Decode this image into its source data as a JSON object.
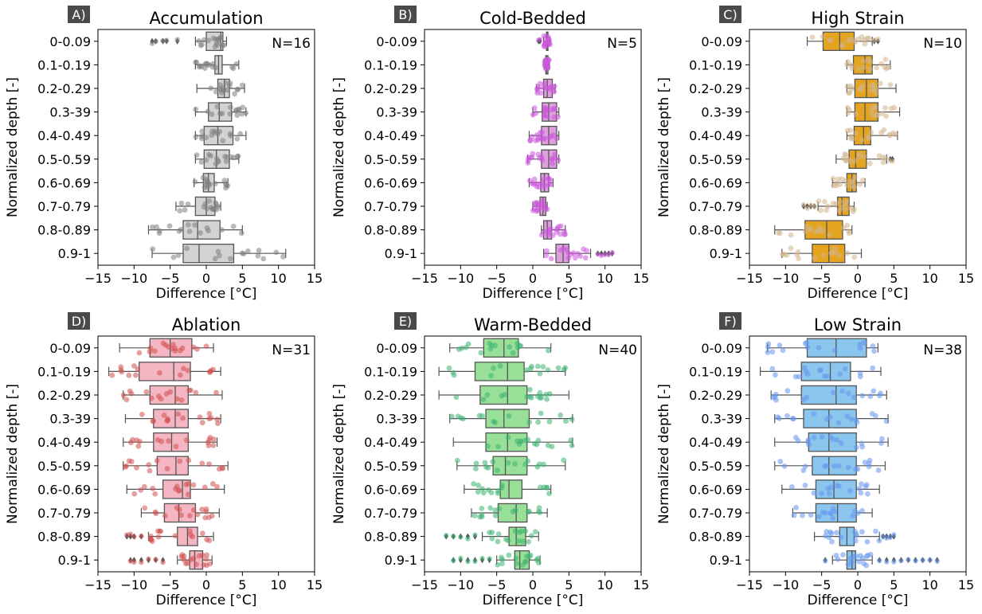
{
  "chart_data": {
    "type": "box",
    "shared": {
      "categories": [
        "0-0.09",
        "0.1-0.19",
        "0.2-0.29",
        "0.3-39",
        "0.4-0.49",
        "0.5-0.59",
        "0.6-0.69",
        "0.7-0.79",
        "0.8-0.89",
        "0.9-1"
      ],
      "xlabel": "Difference [°C]",
      "ylabel": "Normalized depth [-]",
      "xlim": [
        -15,
        15
      ],
      "xticks": [
        -15,
        -10,
        -5,
        0,
        5,
        10,
        15
      ],
      "grid": false
    },
    "panels": [
      {
        "letter": "A)",
        "title": "Accumulation",
        "n_label": "N=16",
        "box_color": "#d3d3d3",
        "point_color": "#808080",
        "boxes": [
          {
            "q1": 0,
            "med": 2,
            "q3": 2.3,
            "wl": -1.5,
            "wh": 2.8,
            "fl": [
              -4,
              -5.5,
              -6,
              -7,
              -7.5
            ]
          },
          {
            "q1": 1.2,
            "med": 1.7,
            "q3": 2.2,
            "wl": -1.5,
            "wh": 4.5,
            "fl": []
          },
          {
            "q1": 1.6,
            "med": 2.5,
            "q3": 3.2,
            "wl": -1.3,
            "wh": 5.3,
            "fl": []
          },
          {
            "q1": 0.3,
            "med": 1.8,
            "q3": 3.5,
            "wl": -1.5,
            "wh": 5.5,
            "fl": []
          },
          {
            "q1": -0.3,
            "med": 1.6,
            "q3": 3.7,
            "wl": -1.5,
            "wh": 5.5,
            "fl": []
          },
          {
            "q1": -0.3,
            "med": 1.4,
            "q3": 3.2,
            "wl": -1.5,
            "wh": 4.5,
            "fl": []
          },
          {
            "q1": -0.4,
            "med": 0.3,
            "q3": 1.1,
            "wl": -1.7,
            "wh": 3,
            "fl": []
          },
          {
            "q1": -1.5,
            "med": 0,
            "q3": 1.2,
            "wl": -4.2,
            "wh": 2,
            "fl": []
          },
          {
            "q1": -3.2,
            "med": -1.2,
            "q3": 1.9,
            "wl": -8,
            "wh": 5,
            "fl": []
          },
          {
            "q1": -3.2,
            "med": -1,
            "q3": 3.8,
            "wl": -7.5,
            "wh": 11,
            "fl": []
          }
        ]
      },
      {
        "letter": "B)",
        "title": "Cold-Bedded",
        "n_label": "N=5",
        "box_color": "#dda0dd",
        "point_color": "#cc55dd",
        "boxes": [
          {
            "q1": 1.9,
            "med": 2.0,
            "q3": 2.1,
            "wl": 1.5,
            "wh": 2.4,
            "fl": [
              0.8,
              1.0
            ]
          },
          {
            "q1": 1.8,
            "med": 1.9,
            "q3": 2.1,
            "wl": 1.6,
            "wh": 2.3,
            "fl": []
          },
          {
            "q1": 1.5,
            "med": 2.0,
            "q3": 2.7,
            "wl": 0.5,
            "wh": 3.1,
            "fl": []
          },
          {
            "q1": 1.3,
            "med": 2.2,
            "q3": 3.3,
            "wl": 0,
            "wh": 3.6,
            "fl": []
          },
          {
            "q1": 1.2,
            "med": 2.2,
            "q3": 3.3,
            "wl": -0.5,
            "wh": 3.6,
            "fl": []
          },
          {
            "q1": 1.2,
            "med": 2.2,
            "q3": 3.3,
            "wl": -0.7,
            "wh": 3.6,
            "fl": []
          },
          {
            "q1": 1.1,
            "med": 1.6,
            "q3": 2.2,
            "wl": -0.5,
            "wh": 2.8,
            "fl": []
          },
          {
            "q1": 1.0,
            "med": 1.4,
            "q3": 1.8,
            "wl": 0,
            "wh": 2.0,
            "fl": []
          },
          {
            "q1": 1.5,
            "med": 2.0,
            "q3": 2.6,
            "wl": 1.2,
            "wh": 4.5,
            "fl": []
          },
          {
            "q1": 3.2,
            "med": 4.2,
            "q3": 5.0,
            "wl": 1.5,
            "wh": 8,
            "fl": [
              9,
              9.5,
              10,
              10.5,
              11
            ]
          }
        ]
      },
      {
        "letter": "C)",
        "title": "High Strain",
        "n_label": "N=10",
        "box_color": "#e5a41f",
        "point_color": "#d2b48c",
        "boxes": [
          {
            "q1": -4.8,
            "med": -2.5,
            "q3": -0.5,
            "wl": -7,
            "wh": 2,
            "fl": [
              2.3,
              2.8
            ]
          },
          {
            "q1": -0.6,
            "med": 1.0,
            "q3": 2.0,
            "wl": -1.5,
            "wh": 4.5,
            "fl": []
          },
          {
            "q1": -0.4,
            "med": 1.2,
            "q3": 2.8,
            "wl": -1.5,
            "wh": 5.3,
            "fl": []
          },
          {
            "q1": -0.4,
            "med": 1.0,
            "q3": 2.8,
            "wl": -1.5,
            "wh": 5.8,
            "fl": []
          },
          {
            "q1": -0.5,
            "med": 0.8,
            "q3": 1.8,
            "wl": -1.5,
            "wh": 5.5,
            "fl": []
          },
          {
            "q1": -1.2,
            "med": -0.3,
            "q3": 1.2,
            "wl": -3,
            "wh": 4,
            "fl": [
              4.5,
              4.8
            ]
          },
          {
            "q1": -1.5,
            "med": -0.8,
            "q3": -0.2,
            "wl": -3.5,
            "wh": 1,
            "fl": []
          },
          {
            "q1": -2.8,
            "med": -2.2,
            "q3": -1.2,
            "wl": -5.5,
            "wh": -0.5,
            "fl": [
              -6,
              -6.5,
              -7,
              -7.5
            ]
          },
          {
            "q1": -7.3,
            "med": -4.3,
            "q3": -2.1,
            "wl": -11.5,
            "wh": -0.8,
            "fl": []
          },
          {
            "q1": -6.3,
            "med": -4.0,
            "q3": -1.8,
            "wl": -10.5,
            "wh": 0.5,
            "fl": []
          }
        ]
      },
      {
        "letter": "D)",
        "title": "Ablation",
        "n_label": "N=31",
        "box_color": "#f4b6c2",
        "point_color": "#d05050",
        "boxes": [
          {
            "q1": -7.8,
            "med": -5.0,
            "q3": -2.0,
            "wl": -12,
            "wh": 1,
            "fl": []
          },
          {
            "q1": -9.3,
            "med": -4.5,
            "q3": -2.2,
            "wl": -13.5,
            "wh": 2,
            "fl": []
          },
          {
            "q1": -7.8,
            "med": -4.3,
            "q3": -2.5,
            "wl": -11.5,
            "wh": 2.2,
            "fl": []
          },
          {
            "q1": -7.3,
            "med": -4.3,
            "q3": -2.5,
            "wl": -11.2,
            "wh": 2,
            "fl": []
          },
          {
            "q1": -7.3,
            "med": -4.8,
            "q3": -2.5,
            "wl": -11.5,
            "wh": 1.5,
            "fl": []
          },
          {
            "q1": -6.8,
            "med": -4.2,
            "q3": -2.5,
            "wl": -11.5,
            "wh": 3,
            "fl": []
          },
          {
            "q1": -6.0,
            "med": -3.3,
            "q3": -2.2,
            "wl": -11,
            "wh": 2.5,
            "fl": []
          },
          {
            "q1": -5.8,
            "med": -3.8,
            "q3": -1.5,
            "wl": -9,
            "wh": 1.8,
            "fl": []
          },
          {
            "q1": -4.0,
            "med": -2.6,
            "q3": -1.2,
            "wl": -8,
            "wh": 1,
            "fl": [
              -9,
              -10,
              -10.5,
              -11
            ]
          },
          {
            "q1": -2.3,
            "med": -1.6,
            "q3": -0.5,
            "wl": -4,
            "wh": 0.8,
            "fl": [
              -6,
              -7,
              -8,
              -9,
              -10,
              -10.5
            ]
          }
        ]
      },
      {
        "letter": "E)",
        "title": "Warm-Bedded",
        "n_label": "N=40",
        "box_color": "#98df98",
        "point_color": "#3cb371",
        "boxes": [
          {
            "q1": -6.8,
            "med": -4.0,
            "q3": -2.0,
            "wl": -11.5,
            "wh": 2.5,
            "fl": []
          },
          {
            "q1": -8.0,
            "med": -3.5,
            "q3": -1.2,
            "wl": -13,
            "wh": 4.5,
            "fl": []
          },
          {
            "q1": -7.3,
            "med": -3.5,
            "q3": -0.8,
            "wl": -13,
            "wh": 5,
            "fl": []
          },
          {
            "q1": -6.5,
            "med": -4.0,
            "q3": -0.5,
            "wl": -11.5,
            "wh": 5.5,
            "fl": []
          },
          {
            "q1": -6.5,
            "med": -3.5,
            "q3": -0.8,
            "wl": -11,
            "wh": 5.5,
            "fl": []
          },
          {
            "q1": -5.5,
            "med": -3.8,
            "q3": -0.8,
            "wl": -10.5,
            "wh": 4.5,
            "fl": []
          },
          {
            "q1": -4.5,
            "med": -3.3,
            "q3": -1.5,
            "wl": -9.5,
            "wh": 2.5,
            "fl": []
          },
          {
            "q1": -4.8,
            "med": -2.3,
            "q3": -0.8,
            "wl": -8.5,
            "wh": 2,
            "fl": []
          },
          {
            "q1": -3.3,
            "med": -2.3,
            "q3": -1.0,
            "wl": -7,
            "wh": 0.8,
            "fl": [
              -8,
              -9,
              -10,
              -11,
              -12
            ]
          },
          {
            "q1": -2.5,
            "med": -1.8,
            "q3": -0.5,
            "wl": -5,
            "wh": 1,
            "fl": [
              -6,
              -7,
              -8,
              -9,
              -10,
              -11
            ]
          }
        ]
      },
      {
        "letter": "F)",
        "title": "Low Strain",
        "n_label": "N=38",
        "box_color": "#8ac6ee",
        "point_color": "#6495ed",
        "boxes": [
          {
            "q1": -7.0,
            "med": -3.0,
            "q3": 1.2,
            "wl": -12.5,
            "wh": 2.8,
            "fl": []
          },
          {
            "q1": -7.8,
            "med": -3.8,
            "q3": -1.0,
            "wl": -13.5,
            "wh": 3.2,
            "fl": []
          },
          {
            "q1": -7.8,
            "med": -3.0,
            "q3": -0.2,
            "wl": -12,
            "wh": 4,
            "fl": []
          },
          {
            "q1": -7.5,
            "med": -4.0,
            "q3": -0.2,
            "wl": -11.5,
            "wh": 4.2,
            "fl": []
          },
          {
            "q1": -6.8,
            "med": -4.0,
            "q3": -0.2,
            "wl": -11.5,
            "wh": 4.2,
            "fl": []
          },
          {
            "q1": -6.3,
            "med": -4.0,
            "q3": -0.2,
            "wl": -11.5,
            "wh": 3.8,
            "fl": []
          },
          {
            "q1": -5.8,
            "med": -3.3,
            "q3": -0.2,
            "wl": -10.5,
            "wh": 3,
            "fl": []
          },
          {
            "q1": -5.8,
            "med": -2.8,
            "q3": -0.2,
            "wl": -9,
            "wh": 2,
            "fl": []
          },
          {
            "q1": -2.5,
            "med": -1.5,
            "q3": -0.5,
            "wl": -6,
            "wh": 3,
            "fl": [
              3.5,
              4,
              4.5,
              5
            ]
          },
          {
            "q1": -1.5,
            "med": -0.8,
            "q3": -0.3,
            "wl": -3.5,
            "wh": 2,
            "fl": [
              -4.5,
              3,
              4,
              5,
              6,
              7,
              8,
              9,
              10,
              11
            ]
          }
        ]
      }
    ]
  }
}
